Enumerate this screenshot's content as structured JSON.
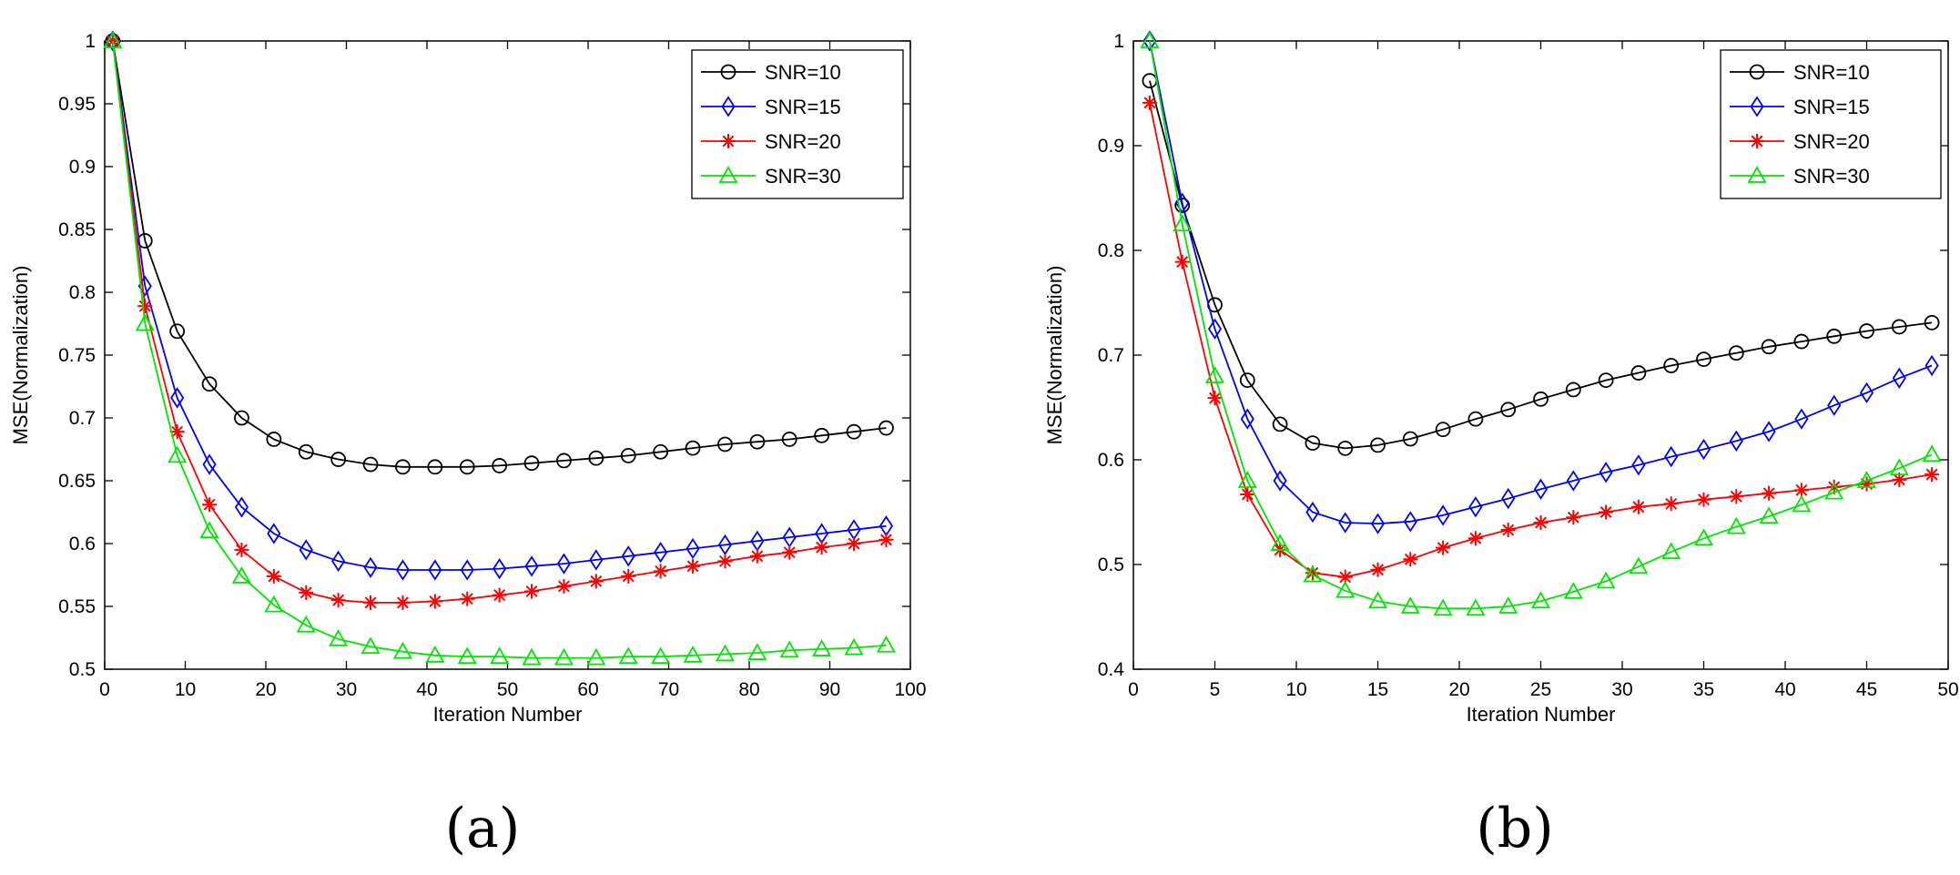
{
  "figure": {
    "panel_labels": [
      "(a)",
      "(b)"
    ]
  },
  "chart_data": [
    {
      "type": "line",
      "panel": "(a)",
      "title": "",
      "xlabel": "Iteration Number",
      "ylabel": "MSE(Normalization)",
      "xlim": [
        0,
        100
      ],
      "ylim": [
        0.5,
        1
      ],
      "xticks": [
        0,
        10,
        20,
        30,
        40,
        50,
        60,
        70,
        80,
        90,
        100
      ],
      "yticks": [
        0.5,
        0.55,
        0.6,
        0.65,
        0.7,
        0.75,
        0.8,
        0.85,
        0.9,
        0.95,
        1
      ],
      "xtick_labels": [
        "0",
        "10",
        "20",
        "30",
        "40",
        "50",
        "60",
        "70",
        "80",
        "90",
        "100"
      ],
      "ytick_labels": [
        "0.5",
        "0.55",
        "0.6",
        "0.65",
        "0.7",
        "0.75",
        "0.8",
        "0.85",
        "0.9",
        "0.95",
        "1"
      ],
      "grid": false,
      "legend_position": "top-right",
      "x": [
        1,
        5,
        9,
        13,
        17,
        21,
        25,
        29,
        33,
        37,
        41,
        45,
        49,
        53,
        57,
        61,
        65,
        69,
        73,
        77,
        81,
        85,
        89,
        93,
        97
      ],
      "series": [
        {
          "name": "SNR=10",
          "color": "#000000",
          "marker": "circle",
          "values": [
            1.0,
            0.841,
            0.769,
            0.727,
            0.7,
            0.683,
            0.673,
            0.667,
            0.663,
            0.661,
            0.661,
            0.661,
            0.662,
            0.664,
            0.666,
            0.668,
            0.67,
            0.673,
            0.676,
            0.679,
            0.681,
            0.683,
            0.686,
            0.689,
            0.692
          ]
        },
        {
          "name": "SNR=15",
          "color": "#0000ff",
          "marker": "diamond",
          "values": [
            1.0,
            0.805,
            0.716,
            0.663,
            0.629,
            0.608,
            0.595,
            0.586,
            0.581,
            0.579,
            0.579,
            0.579,
            0.58,
            0.582,
            0.584,
            0.587,
            0.59,
            0.593,
            0.596,
            0.599,
            0.602,
            0.605,
            0.608,
            0.611,
            0.614
          ]
        },
        {
          "name": "SNR=20",
          "color": "#ff0000",
          "marker": "star",
          "values": [
            1.0,
            0.789,
            0.689,
            0.631,
            0.595,
            0.574,
            0.561,
            0.555,
            0.553,
            0.553,
            0.554,
            0.556,
            0.559,
            0.562,
            0.566,
            0.57,
            0.574,
            0.578,
            0.582,
            0.586,
            0.59,
            0.593,
            0.597,
            0.6,
            0.603
          ]
        },
        {
          "name": "SNR=30",
          "color": "#00e600",
          "marker": "triangle",
          "values": [
            1.0,
            0.775,
            0.67,
            0.61,
            0.574,
            0.551,
            0.535,
            0.524,
            0.518,
            0.514,
            0.511,
            0.51,
            0.51,
            0.509,
            0.509,
            0.509,
            0.51,
            0.51,
            0.511,
            0.512,
            0.513,
            0.515,
            0.516,
            0.517,
            0.519
          ]
        }
      ]
    },
    {
      "type": "line",
      "panel": "(b)",
      "title": "",
      "xlabel": "Iteration Number",
      "ylabel": "MSE(Normalization)",
      "xlim": [
        0,
        50
      ],
      "ylim": [
        0.4,
        1
      ],
      "xticks": [
        0,
        5,
        10,
        15,
        20,
        25,
        30,
        35,
        40,
        45,
        50
      ],
      "yticks": [
        0.4,
        0.5,
        0.6,
        0.7,
        0.8,
        0.9,
        1
      ],
      "xtick_labels": [
        "0",
        "5",
        "10",
        "15",
        "20",
        "25",
        "30",
        "35",
        "40",
        "45",
        "50"
      ],
      "ytick_labels": [
        "0.4",
        "0.5",
        "0.6",
        "0.7",
        "0.8",
        "0.9",
        "1"
      ],
      "grid": false,
      "legend_position": "top-right",
      "x": [
        1,
        3,
        5,
        7,
        9,
        11,
        13,
        15,
        17,
        19,
        21,
        23,
        25,
        27,
        29,
        31,
        33,
        35,
        37,
        39,
        41,
        43,
        45,
        47,
        49
      ],
      "series": [
        {
          "name": "SNR=10",
          "color": "#000000",
          "marker": "circle",
          "values": [
            0.962,
            0.843,
            0.748,
            0.676,
            0.634,
            0.616,
            0.611,
            0.614,
            0.62,
            0.629,
            0.639,
            0.648,
            0.658,
            0.667,
            0.676,
            0.683,
            0.69,
            0.696,
            0.702,
            0.708,
            0.713,
            0.718,
            0.723,
            0.727,
            0.731
          ]
        },
        {
          "name": "SNR=15",
          "color": "#0000ff",
          "marker": "diamond",
          "values": [
            1.0,
            0.845,
            0.725,
            0.639,
            0.58,
            0.55,
            0.54,
            0.539,
            0.541,
            0.547,
            0.555,
            0.563,
            0.572,
            0.58,
            0.588,
            0.595,
            0.603,
            0.61,
            0.618,
            0.627,
            0.639,
            0.652,
            0.664,
            0.678,
            0.69
          ]
        },
        {
          "name": "SNR=20",
          "color": "#ff0000",
          "marker": "star",
          "values": [
            0.941,
            0.789,
            0.659,
            0.567,
            0.514,
            0.492,
            0.488,
            0.495,
            0.505,
            0.516,
            0.525,
            0.533,
            0.54,
            0.545,
            0.55,
            0.555,
            0.558,
            0.562,
            0.565,
            0.568,
            0.571,
            0.574,
            0.577,
            0.581,
            0.586
          ]
        },
        {
          "name": "SNR=30",
          "color": "#00e600",
          "marker": "triangle",
          "values": [
            1.0,
            0.825,
            0.68,
            0.58,
            0.52,
            0.49,
            0.475,
            0.465,
            0.46,
            0.458,
            0.458,
            0.46,
            0.465,
            0.474,
            0.484,
            0.498,
            0.512,
            0.525,
            0.536,
            0.546,
            0.557,
            0.569,
            0.58,
            0.592,
            0.605
          ]
        }
      ]
    }
  ]
}
